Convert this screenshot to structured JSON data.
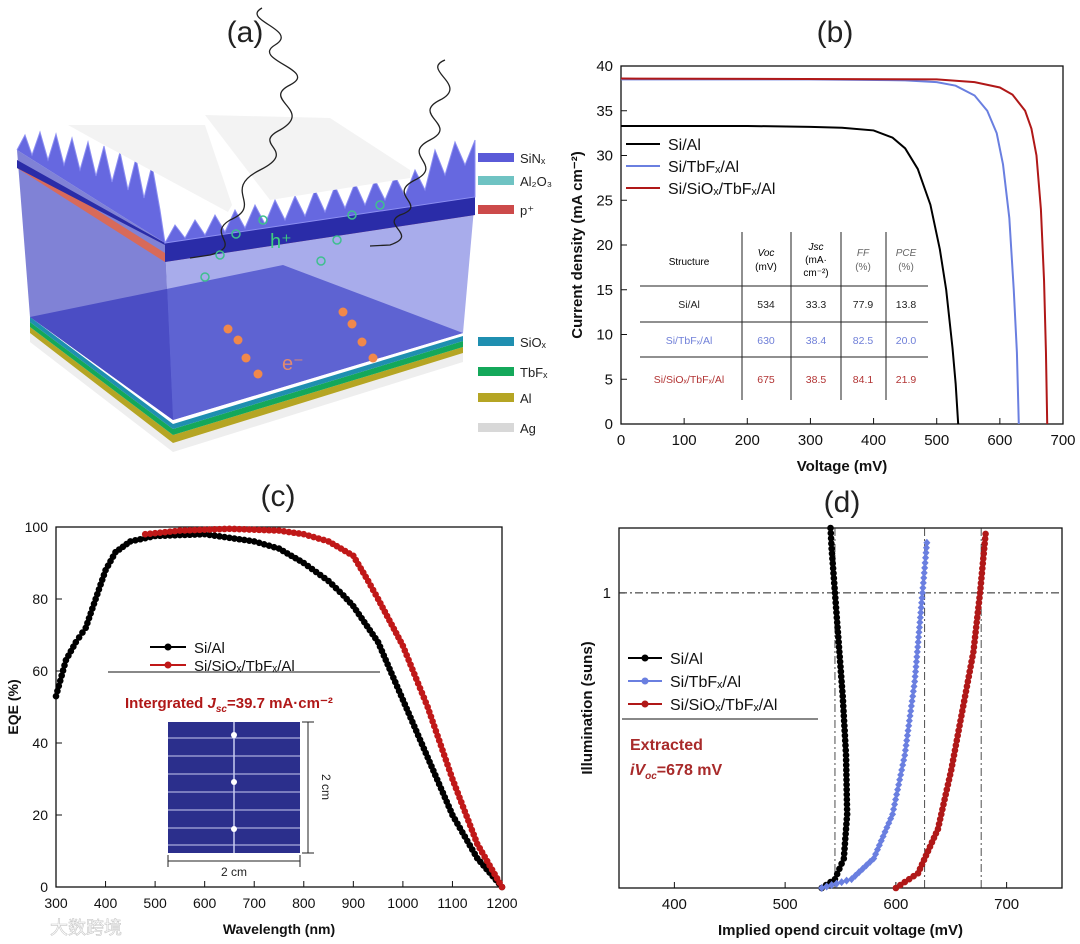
{
  "panels": {
    "a": {
      "label": "(a)",
      "hole_label": "h⁺",
      "electron_label": "e⁻",
      "legend": [
        {
          "text": "SiNₓ",
          "color": "#5a5ad8"
        },
        {
          "text": "Al₂O₃",
          "color": "#6fc3c3"
        },
        {
          "text": "p⁺",
          "color": "#cc4a4a"
        },
        {
          "text": "SiOₓ",
          "color": "#1f8fb0"
        },
        {
          "text": "TbFₓ",
          "color": "#14a85a"
        },
        {
          "text": "Al",
          "color": "#b5a524"
        },
        {
          "text": "Ag",
          "color": "#d8d8d8"
        }
      ]
    },
    "b": {
      "label": "(b)",
      "table": {
        "headers": [
          "Structure",
          "Voc",
          "(mV)",
          "Jsc",
          "(mA·",
          "cm⁻²)",
          "FF",
          "(%)",
          "PCE",
          "(%)"
        ],
        "rows": [
          {
            "structure": "Si/Al",
            "voc": "534",
            "jsc": "33.3",
            "ff": "77.9",
            "pce": "13.8",
            "color": "#222222"
          },
          {
            "structure": "Si/TbFₓ/Al",
            "voc": "630",
            "jsc": "38.4",
            "ff": "82.5",
            "pce": "20.0",
            "color": "#6f7fd8"
          },
          {
            "structure": "Si/SiOₓ/TbFₓ/Al",
            "voc": "675",
            "jsc": "38.5",
            "ff": "84.1",
            "pce": "21.9",
            "color": "#b23434"
          }
        ]
      }
    },
    "c": {
      "label": "(c)",
      "integrated": {
        "prefix": "Intergrated ",
        "j": "J",
        "sub": "sc",
        "suffix": "=39.7 mA·cm⁻²"
      },
      "inset_dim_x": "2 cm",
      "inset_dim_y": "2 cm"
    },
    "d": {
      "label": "(d)",
      "extracted": {
        "line1": "Extracted",
        "i": "iV",
        "sub": "oc",
        "suffix": "=678 mV"
      }
    }
  },
  "watermark": "大数跨境",
  "chart_data": [
    {
      "panel": "b",
      "type": "line",
      "xlabel": "Voltage (mV)",
      "ylabel": "Current density (mA  cm⁻²)",
      "xlim": [
        0,
        700
      ],
      "ylim": [
        0,
        40
      ],
      "xticks": [
        0,
        100,
        200,
        300,
        400,
        500,
        600,
        700
      ],
      "yticks": [
        0,
        5,
        10,
        15,
        20,
        25,
        30,
        35,
        40
      ],
      "legend_position": "top-left",
      "series": [
        {
          "name": "Si/Al",
          "color": "#000000",
          "points": [
            [
              0,
              33.3
            ],
            [
              100,
              33.3
            ],
            [
              200,
              33.3
            ],
            [
              300,
              33.2
            ],
            [
              350,
              33.1
            ],
            [
              400,
              32.8
            ],
            [
              430,
              32.0
            ],
            [
              450,
              30.8
            ],
            [
              470,
              28.5
            ],
            [
              490,
              24.5
            ],
            [
              505,
              19.5
            ],
            [
              515,
              15
            ],
            [
              525,
              8.5
            ],
            [
              530,
              4.5
            ],
            [
              534,
              0
            ]
          ]
        },
        {
          "name": "Si/TbFₓ/Al",
          "color": "#6a7fe0",
          "points": [
            [
              0,
              38.5
            ],
            [
              300,
              38.5
            ],
            [
              450,
              38.4
            ],
            [
              500,
              38.2
            ],
            [
              530,
              37.8
            ],
            [
              560,
              36.7
            ],
            [
              580,
              35.0
            ],
            [
              595,
              32.5
            ],
            [
              605,
              29
            ],
            [
              615,
              23
            ],
            [
              622,
              15
            ],
            [
              627,
              8
            ],
            [
              630,
              0
            ]
          ]
        },
        {
          "name": "Si/SiOₓ/TbFₓ/Al",
          "color": "#b01818",
          "points": [
            [
              0,
              38.6
            ],
            [
              500,
              38.5
            ],
            [
              560,
              38.2
            ],
            [
              600,
              37.6
            ],
            [
              620,
              36.8
            ],
            [
              640,
              35.0
            ],
            [
              650,
              33
            ],
            [
              658,
              30
            ],
            [
              665,
              24
            ],
            [
              670,
              16
            ],
            [
              673,
              8
            ],
            [
              675,
              0
            ]
          ]
        }
      ]
    },
    {
      "panel": "c",
      "type": "line",
      "xlabel": "Wavelength (nm)",
      "ylabel": "EQE (%)",
      "xlim": [
        300,
        1200
      ],
      "ylim": [
        0,
        100
      ],
      "xticks": [
        300,
        400,
        500,
        600,
        700,
        800,
        900,
        1000,
        1100,
        1200
      ],
      "yticks": [
        0,
        20,
        40,
        60,
        80,
        100
      ],
      "legend_position": "center-left",
      "series": [
        {
          "name": "Si/Al",
          "color": "#000000",
          "points": [
            [
              300,
              53
            ],
            [
              320,
              63
            ],
            [
              340,
              68
            ],
            [
              360,
              72
            ],
            [
              380,
              80
            ],
            [
              400,
              88
            ],
            [
              420,
              93
            ],
            [
              450,
              96
            ],
            [
              500,
              97.5
            ],
            [
              600,
              98
            ],
            [
              700,
              96
            ],
            [
              750,
              94
            ],
            [
              800,
              90
            ],
            [
              850,
              85
            ],
            [
              880,
              81
            ],
            [
              900,
              78
            ],
            [
              950,
              68
            ],
            [
              1000,
              52
            ],
            [
              1050,
              36
            ],
            [
              1100,
              20
            ],
            [
              1150,
              8
            ],
            [
              1200,
              0
            ]
          ]
        },
        {
          "name": "Si/SiOₓ/TbFₓ/Al",
          "color": "#c01818",
          "points": [
            [
              480,
              98
            ],
            [
              550,
              99
            ],
            [
              650,
              99.5
            ],
            [
              750,
              99
            ],
            [
              800,
              98
            ],
            [
              850,
              96
            ],
            [
              900,
              92
            ],
            [
              930,
              85
            ],
            [
              950,
              80
            ],
            [
              1000,
              67
            ],
            [
              1050,
              50
            ],
            [
              1100,
              30
            ],
            [
              1150,
              12
            ],
            [
              1200,
              0
            ]
          ]
        }
      ]
    },
    {
      "panel": "d",
      "type": "line",
      "xlabel": "Implied opend circuit voltage (mV)",
      "ylabel": "Illumination (suns)",
      "xlim": [
        350,
        750
      ],
      "ylim": [
        0,
        1.22
      ],
      "xticks": [
        400,
        500,
        600,
        700
      ],
      "yticks": [
        1
      ],
      "reference_lines": {
        "y": [
          1
        ],
        "x": [
          545,
          626,
          677
        ]
      },
      "legend_position": "center-left",
      "series": [
        {
          "name": "Si/Al",
          "color": "#000000",
          "marker": "circle",
          "points": [
            [
              533,
              0
            ],
            [
              545,
              0.03
            ],
            [
              553,
              0.1
            ],
            [
              556,
              0.25
            ],
            [
              555,
              0.45
            ],
            [
              552,
              0.65
            ],
            [
              548,
              0.85
            ],
            [
              545,
              1.0
            ],
            [
              542,
              1.15
            ],
            [
              541,
              1.22
            ]
          ]
        },
        {
          "name": "Si/TbFₓ/Al",
          "color": "#6a7fe0",
          "marker": "diamond",
          "points": [
            [
              533,
              0
            ],
            [
              560,
              0.03
            ],
            [
              580,
              0.1
            ],
            [
              597,
              0.25
            ],
            [
              608,
              0.45
            ],
            [
              617,
              0.7
            ],
            [
              624,
              1.0
            ],
            [
              628,
              1.17
            ]
          ]
        },
        {
          "name": "Si/SiOₓ/TbFₓ/Al",
          "color": "#b01818",
          "marker": "pentagon",
          "points": [
            [
              600,
              0
            ],
            [
              620,
              0.05
            ],
            [
              638,
              0.2
            ],
            [
              650,
              0.4
            ],
            [
              660,
              0.6
            ],
            [
              670,
              0.8
            ],
            [
              676,
              1.0
            ],
            [
              681,
              1.2
            ]
          ]
        }
      ]
    }
  ]
}
